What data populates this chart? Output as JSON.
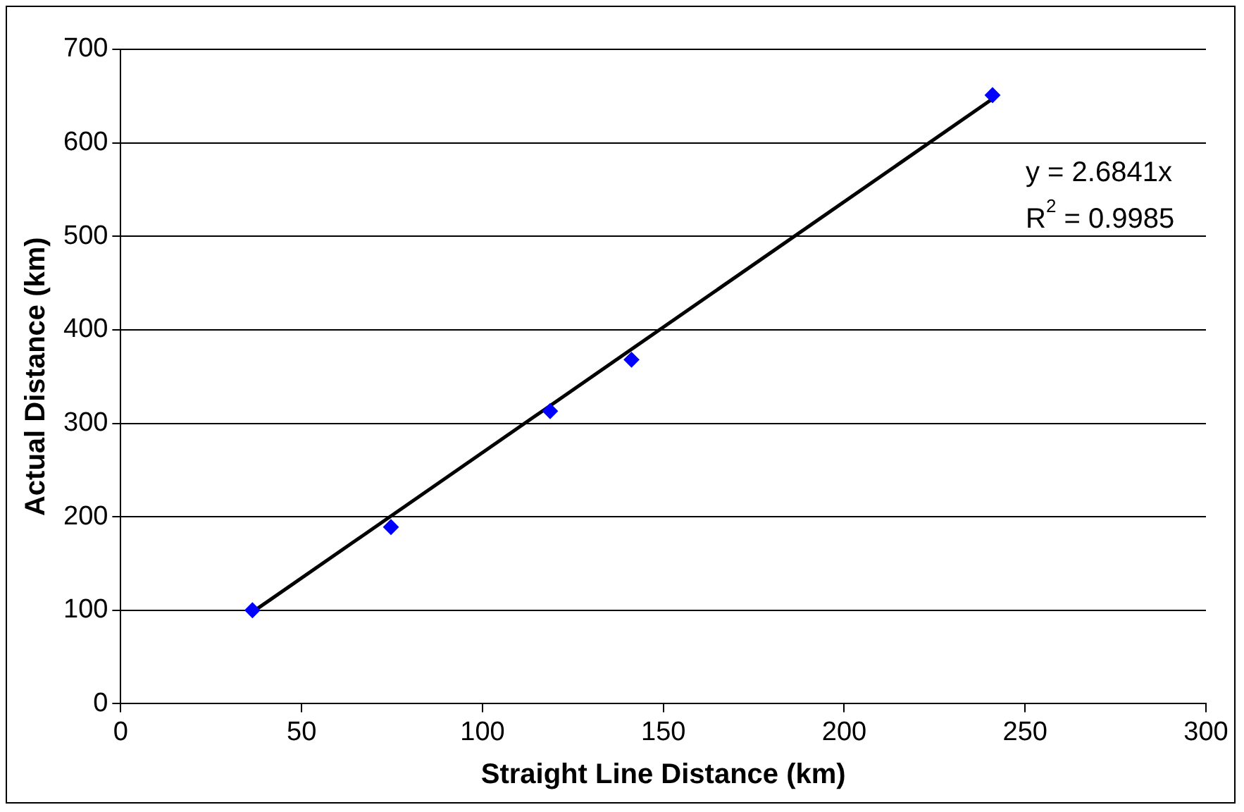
{
  "chart_data": {
    "type": "scatter",
    "xlabel": "Straight Line Distance (km)",
    "ylabel": "Actual Distance (km)",
    "xlim": [
      0,
      300
    ],
    "xticks": [
      0,
      50,
      100,
      150,
      200,
      250,
      300
    ],
    "ylim": [
      0,
      700
    ],
    "yticks": [
      0,
      100,
      200,
      300,
      400,
      500,
      600,
      700
    ],
    "grid": "y",
    "legend": false,
    "marker": "diamond",
    "series": [
      {
        "type": "scatter",
        "color": "#0000ff",
        "x": [
          36.4,
          74.7,
          118.7,
          141.2,
          241
        ],
        "values": [
          100,
          189,
          313,
          368,
          651
        ]
      },
      {
        "type": "line",
        "color": "#000000",
        "x": [
          36.4,
          241
        ],
        "values": [
          98,
          647
        ],
        "marker": "none"
      }
    ],
    "annotations": [
      "y = 2.6841x",
      "R$^{2}$ = 0.9985"
    ]
  }
}
